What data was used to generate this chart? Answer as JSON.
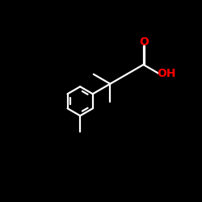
{
  "bg": "#000000",
  "lc": "#ffffff",
  "oc": "#ff0000",
  "lw": 1.6,
  "fs_o": 10,
  "fs_oh": 10,
  "ring_r": 0.72,
  "bl": 0.95
}
